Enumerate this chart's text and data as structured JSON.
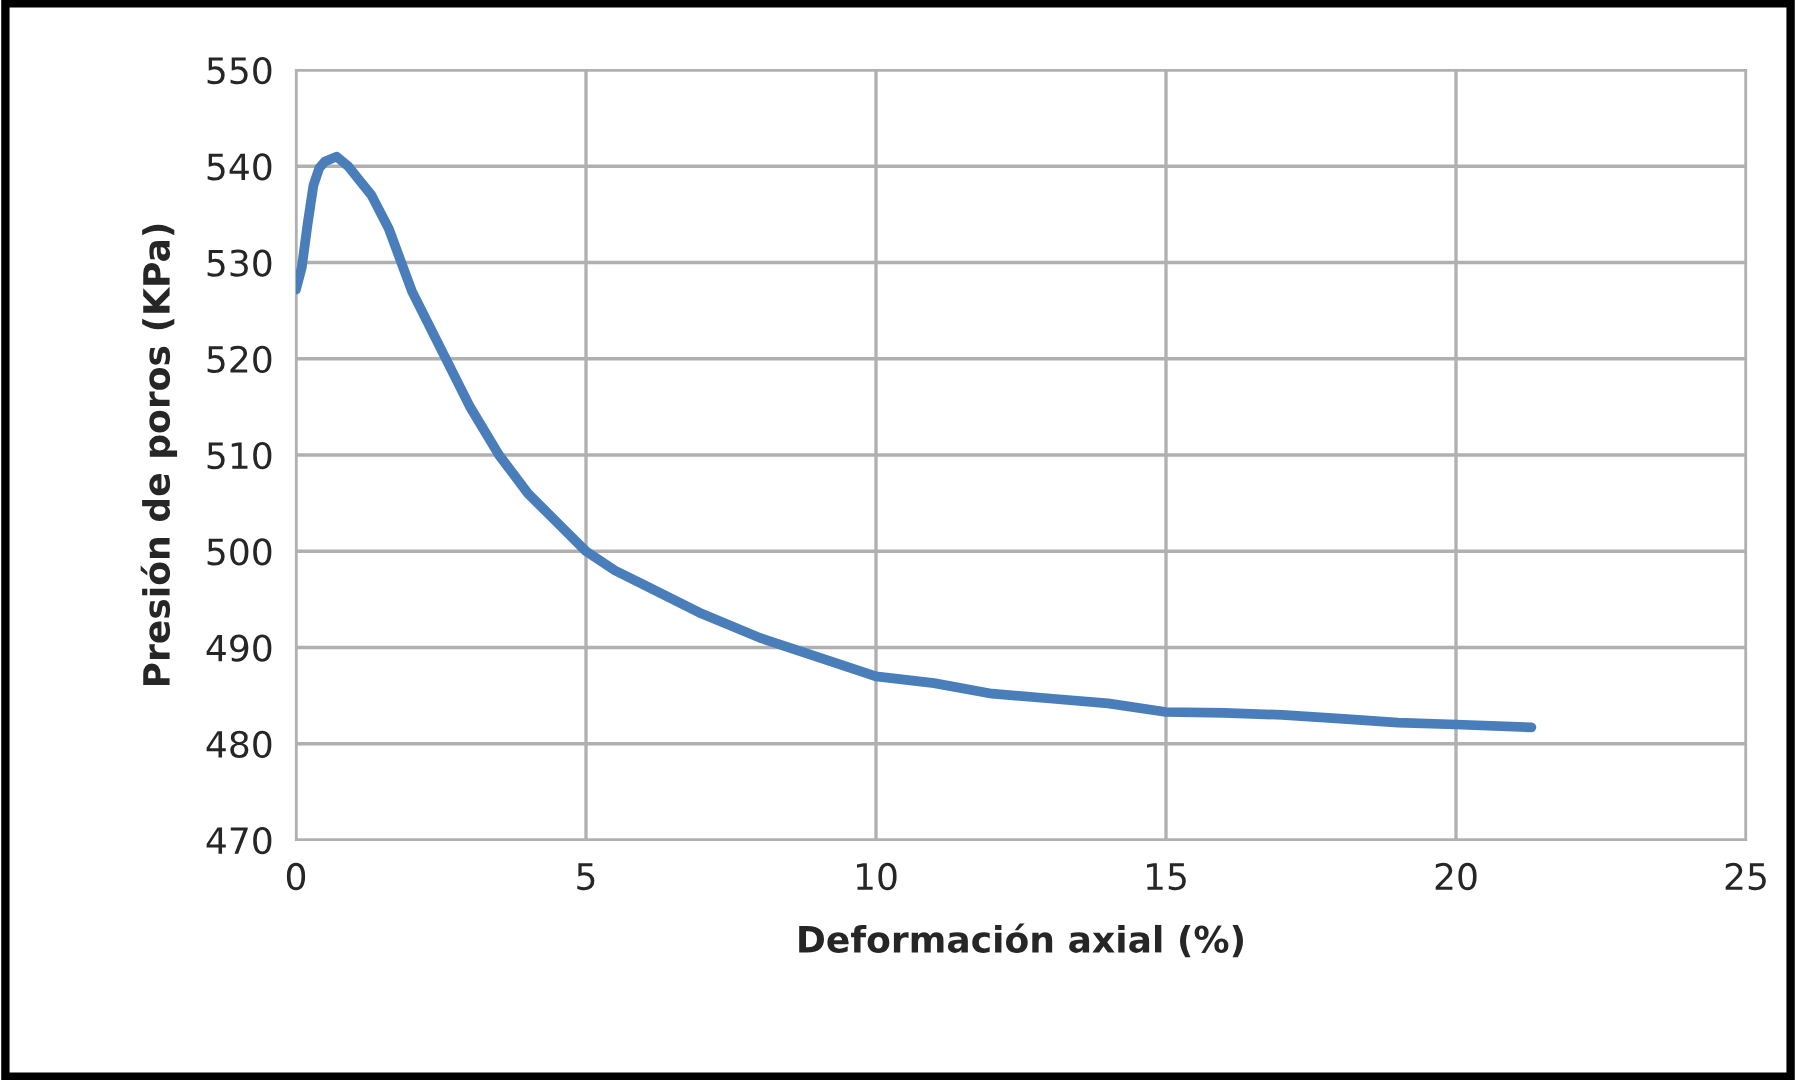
{
  "chart_data": {
    "type": "line",
    "xlabel": "Deformación axial (%)",
    "ylabel": "Presión de poros (KPa)",
    "series": [
      {
        "color": "#4a7ebb",
        "x": [
          0,
          0.1,
          0.2,
          0.3,
          0.4,
          0.5,
          0.7,
          0.9,
          1.1,
          1.3,
          1.6,
          2,
          2.5,
          3,
          3.5,
          4,
          4.5,
          5,
          5.5,
          6,
          7,
          8,
          9,
          10,
          11,
          12,
          13,
          14,
          15,
          16,
          17,
          18,
          19,
          20,
          21.3
        ],
        "values": [
          527.2,
          529.5,
          534,
          538,
          539.8,
          540.5,
          541,
          540,
          538.5,
          537,
          533.5,
          527,
          521,
          515,
          510,
          506,
          503,
          500,
          498,
          496.5,
          493.5,
          491,
          489,
          487,
          486.3,
          485.2,
          484.7,
          484.2,
          483.3,
          483.2,
          483,
          482.6,
          482.2,
          482,
          481.7
        ]
      }
    ],
    "xlim": [
      0,
      25
    ],
    "xticks": [
      0,
      5,
      10,
      15,
      20,
      25
    ],
    "ylim": [
      470,
      550
    ],
    "yticks": [
      470,
      480,
      490,
      500,
      510,
      520,
      530,
      540,
      550
    ],
    "grid": true,
    "marker": "none",
    "line_style": "solid"
  }
}
